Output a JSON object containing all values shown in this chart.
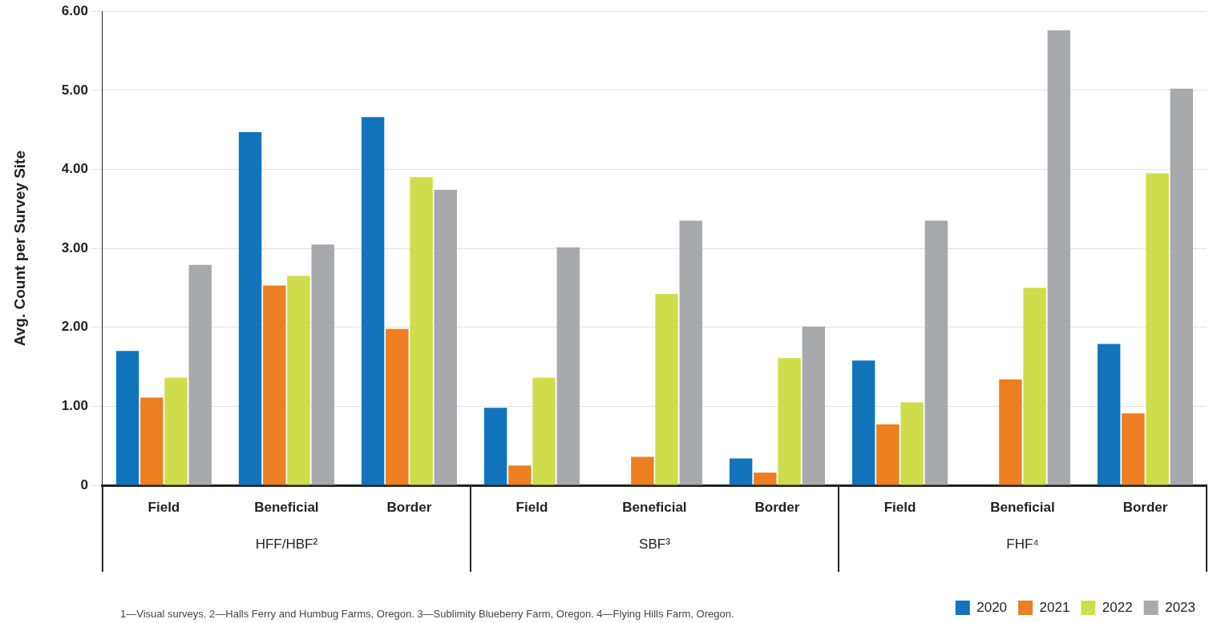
{
  "chart_data": {
    "type": "bar",
    "ylabel": "Avg. Count per Survey Site",
    "categories": [
      "Field",
      "Beneficial",
      "Border",
      "Field",
      "Beneficial",
      "Border",
      "Field",
      "Beneficial",
      "Border"
    ],
    "series": [
      {
        "name": "2020",
        "color": "#1174bd",
        "values": [
          1.7,
          4.47,
          4.66,
          0.98,
          null,
          0.34,
          1.58,
          null,
          1.79
        ]
      },
      {
        "name": "2021",
        "color": "#ec7f22",
        "values": [
          1.11,
          2.53,
          1.98,
          0.25,
          0.36,
          0.16,
          0.77,
          1.34,
          0.91
        ]
      },
      {
        "name": "2022",
        "color": "#cedd4a",
        "values": [
          1.36,
          2.65,
          3.9,
          1.36,
          2.42,
          1.61,
          1.05,
          2.5,
          3.95
        ]
      },
      {
        "name": "2023",
        "color": "#a8a9ad",
        "values": [
          2.79,
          3.05,
          3.74,
          3.01,
          3.35,
          2.01,
          3.35,
          5.76,
          5.02
        ]
      }
    ],
    "ylim": [
      0,
      6
    ],
    "yticks": [
      0,
      {
        "value": 1,
        "label": "1.00"
      },
      {
        "value": 2,
        "label": "2.00"
      },
      {
        "value": 3,
        "label": "3.00"
      },
      {
        "value": 4,
        "label": "4.00"
      },
      {
        "value": 5,
        "label": "5.00"
      },
      {
        "value": 6,
        "label": "6.00"
      }
    ],
    "grid": "y",
    "legend": "bottom right",
    "annotations": [
      "HFF/HBF²",
      "SBF³",
      "FHF⁴",
      "1—Visual surveys. 2—Halls Ferry and Humbug Farms, Oregon. 3—Sublimity Blueberry Farm, Oregon. 4—Flying Hills Farm, Oregon."
    ]
  }
}
